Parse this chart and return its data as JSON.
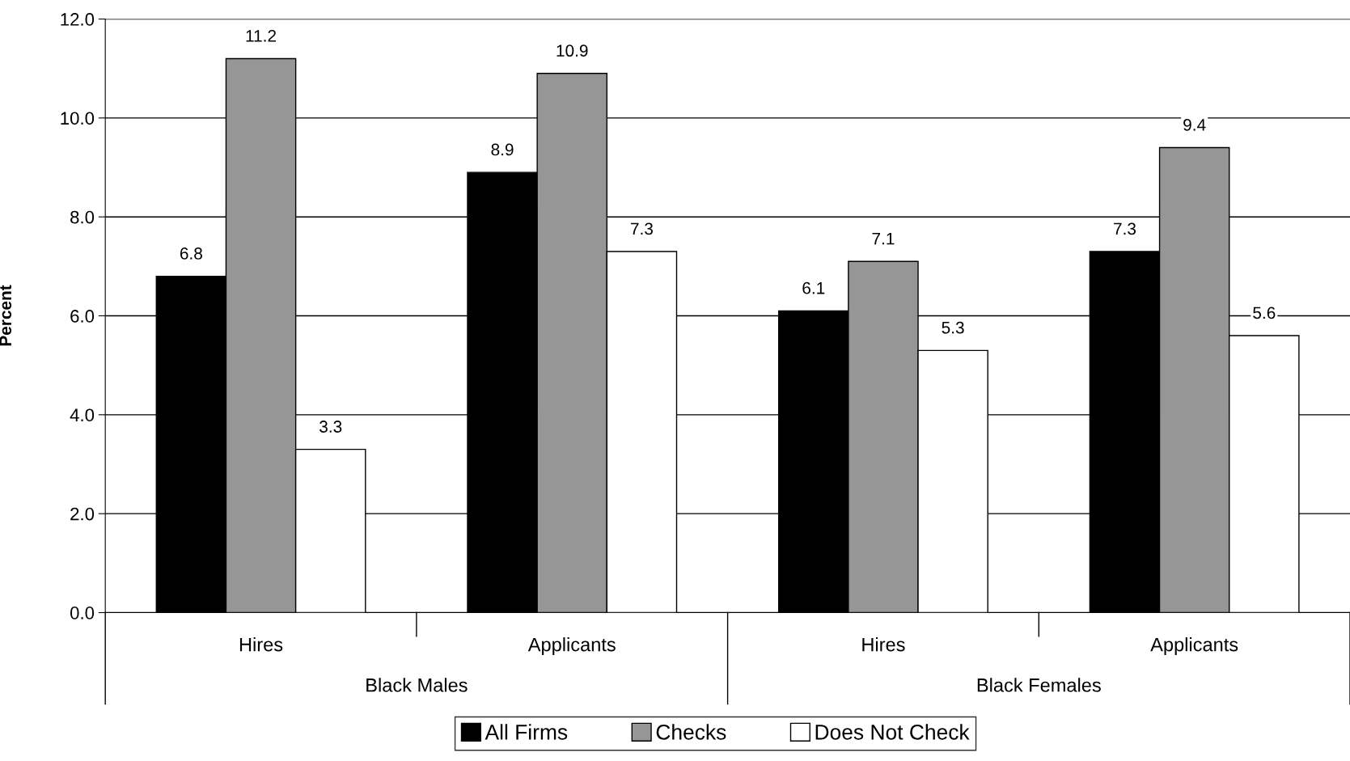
{
  "chart_data": {
    "type": "bar",
    "ylabel": "Percent",
    "categories": [
      "Hires",
      "Applicants",
      "Hires",
      "Applicants"
    ],
    "series": [
      {
        "name": "All Firms",
        "color": "#000000",
        "values": [
          6.8,
          8.9,
          6.1,
          7.3
        ]
      },
      {
        "name": "Checks",
        "color": "#969696",
        "values": [
          11.2,
          10.9,
          7.1,
          9.4
        ]
      },
      {
        "name": "Does Not Check",
        "color": "#ffffff",
        "values": [
          3.3,
          7.3,
          5.3,
          5.6
        ]
      }
    ],
    "annotations": [
      "Black Males",
      "Black Females"
    ],
    "ylim": [
      0,
      12
    ],
    "yticks": [
      {
        "value": 0,
        "label": "0.0"
      },
      {
        "value": 2,
        "label": "2.0"
      },
      {
        "value": 4,
        "label": "4.0"
      },
      {
        "value": 6,
        "label": "6.0"
      },
      {
        "value": 8,
        "label": "8.0"
      },
      {
        "value": 10,
        "label": "10.0"
      },
      {
        "value": 12,
        "label": "12.0"
      }
    ],
    "grid": "y",
    "data_labels": true,
    "legend": "bottom"
  }
}
